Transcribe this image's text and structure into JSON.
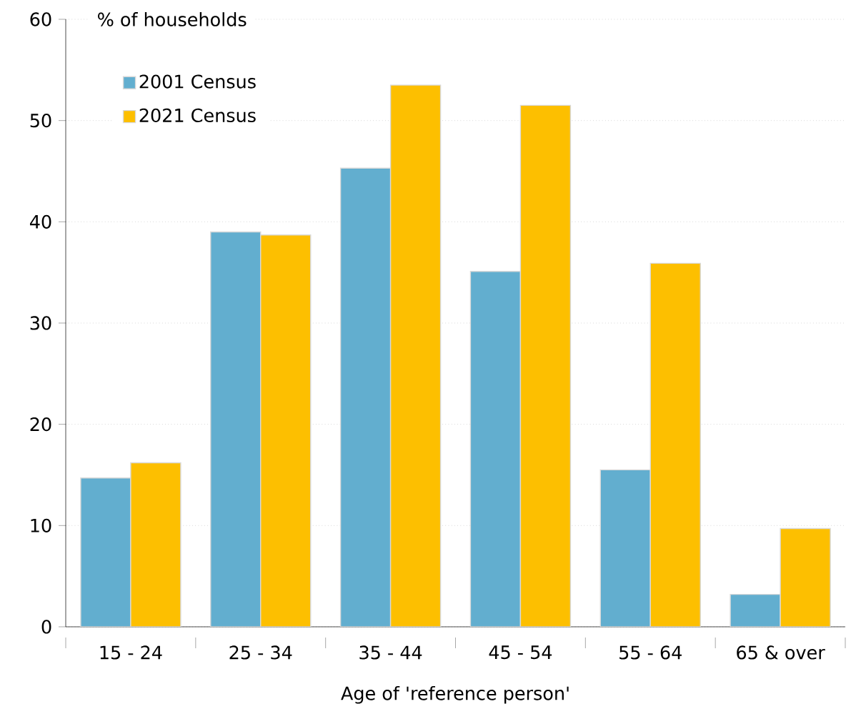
{
  "chart_data": {
    "type": "bar",
    "xlabel": "Age of 'reference person'",
    "ylabel": "% of households",
    "categories": [
      "15 - 24",
      "25 - 34",
      "35 - 44",
      "45 - 54",
      "55 - 64",
      "65 & over"
    ],
    "series": [
      {
        "name": "2001 Census",
        "color": "#62aecf",
        "values": [
          14.7,
          39.0,
          45.3,
          35.1,
          15.5,
          3.2
        ]
      },
      {
        "name": "2021 Census",
        "color": "#fdbf00",
        "values": [
          16.2,
          38.7,
          53.5,
          51.5,
          35.9,
          9.7
        ]
      }
    ],
    "ylim": [
      0,
      60
    ],
    "yticks": [
      0,
      10,
      20,
      30,
      40,
      50,
      60
    ],
    "grid": "y",
    "legend": "top left"
  }
}
